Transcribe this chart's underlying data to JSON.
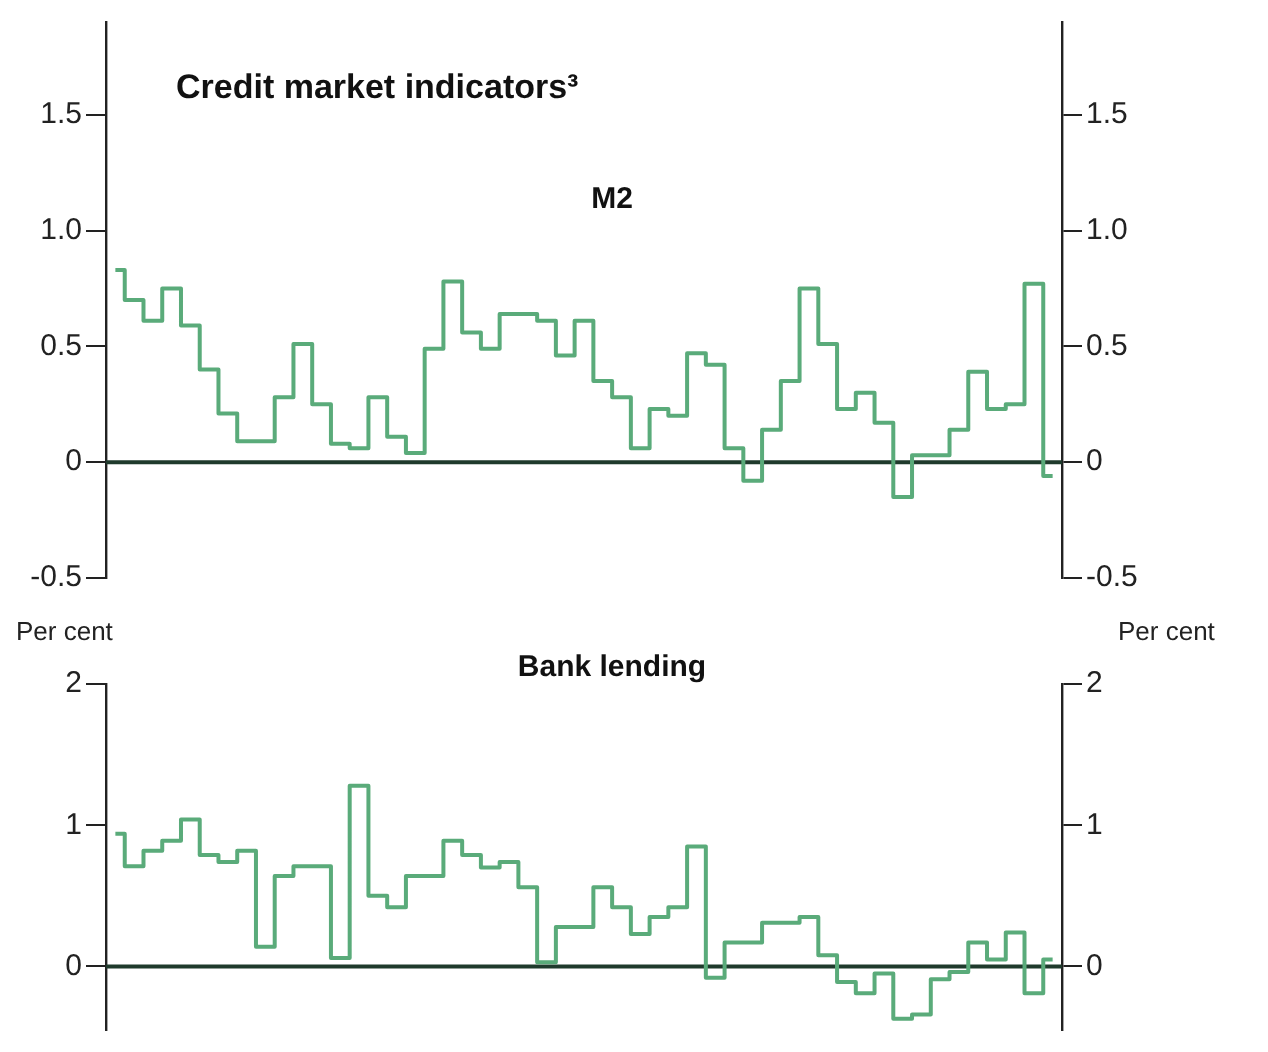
{
  "chart_data": [
    {
      "type": "step",
      "title": "Credit market indicators³",
      "subtitle": "M2",
      "categories": [
        null,
        null,
        null,
        null,
        null,
        null,
        null,
        null,
        null,
        null,
        null,
        null,
        null,
        null,
        null,
        null,
        null,
        null,
        null,
        null,
        null,
        null,
        null,
        null,
        null,
        null,
        null,
        null,
        null,
        null,
        null,
        null,
        null,
        null,
        null,
        null,
        null,
        null,
        null,
        null,
        null,
        null,
        null,
        null,
        null,
        null,
        null,
        null,
        null,
        null,
        null
      ],
      "series": [
        {
          "color": "#5aab7a",
          "values": [
            0.83,
            0.7,
            0.61,
            0.75,
            0.59,
            0.4,
            0.21,
            0.09,
            0.09,
            0.28,
            0.51,
            0.25,
            0.08,
            0.06,
            0.28,
            0.11,
            0.04,
            0.49,
            0.78,
            0.56,
            0.49,
            0.64,
            0.64,
            0.61,
            0.46,
            0.61,
            0.35,
            0.28,
            0.06,
            0.23,
            0.2,
            0.47,
            0.42,
            0.06,
            -0.08,
            0.14,
            0.35,
            0.75,
            0.51,
            0.23,
            0.3,
            0.17,
            -0.15,
            0.03,
            0.03,
            0.14,
            0.39,
            0.23,
            0.25,
            0.77,
            -0.06
          ]
        }
      ],
      "ylim": [
        -0.5,
        1.9
      ],
      "yticks": [
        {
          "value": -0.5,
          "label": "-0.5"
        },
        0,
        {
          "value": 0.5,
          "label": "0.5"
        },
        {
          "value": 1,
          "label": "1.0"
        },
        {
          "value": 1.5,
          "label": "1.5"
        }
      ],
      "y2lim": [
        -0.5,
        1.9
      ],
      "y2ticks": [
        {
          "value": -0.5,
          "label": "-0.5"
        },
        0,
        {
          "value": 0.5,
          "label": "0.5"
        },
        {
          "value": 1,
          "label": "1.0"
        },
        {
          "value": 1.5,
          "label": "1.5"
        }
      ],
      "ref_lines": [
        {
          "axis": "y",
          "value": 0,
          "color": "#1f3a2c"
        }
      ],
      "grid": false,
      "legend": false,
      "marker": "none",
      "line_style": "solid",
      "tick_labels": "y"
    },
    {
      "type": "step",
      "title": "Bank lending",
      "ylabel": "Per cent",
      "y2label": "Per cent",
      "categories": [
        null,
        null,
        null,
        null,
        null,
        null,
        null,
        null,
        null,
        null,
        null,
        null,
        null,
        null,
        null,
        null,
        null,
        null,
        null,
        null,
        null,
        null,
        null,
        null,
        null,
        null,
        null,
        null,
        null,
        null,
        null,
        null,
        null,
        null,
        null,
        null,
        null,
        null,
        null,
        null,
        null,
        null,
        null,
        null,
        null,
        null,
        null,
        null,
        null,
        null,
        null
      ],
      "series": [
        {
          "color": "#5aab7a",
          "values": [
            0.94,
            0.71,
            0.82,
            0.89,
            1.04,
            0.79,
            0.74,
            0.82,
            0.14,
            0.64,
            0.71,
            0.71,
            0.06,
            1.28,
            0.5,
            0.42,
            0.64,
            0.64,
            0.89,
            0.79,
            0.7,
            0.74,
            0.56,
            0.03,
            0.28,
            0.28,
            0.56,
            0.42,
            0.23,
            0.35,
            0.42,
            0.85,
            -0.08,
            0.17,
            0.17,
            0.31,
            0.31,
            0.35,
            0.08,
            -0.11,
            -0.19,
            -0.05,
            -0.37,
            -0.34,
            -0.09,
            -0.04,
            0.17,
            0.05,
            0.24,
            -0.19,
            0.05
          ]
        }
      ],
      "ylim": [
        -0.45,
        2
      ],
      "yticks": [
        0,
        1,
        2
      ],
      "y2lim": [
        -0.45,
        2
      ],
      "y2ticks": [
        0,
        1,
        2
      ],
      "ref_lines": [
        {
          "axis": "y",
          "value": 0,
          "color": "#1f3a2c"
        }
      ],
      "grid": false,
      "legend": false,
      "marker": "none",
      "line_style": "solid",
      "tick_labels": "y"
    }
  ]
}
